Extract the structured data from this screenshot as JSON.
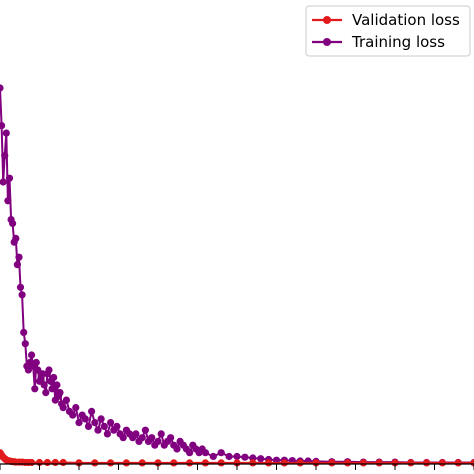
{
  "chart_data": {
    "type": "line",
    "title": "",
    "xlabel": "",
    "ylabel": "",
    "grid": false,
    "legend_position": "top-right",
    "xlim": [
      0,
      300
    ],
    "ylim": [
      0,
      100
    ],
    "series": [
      {
        "name": "Validation loss",
        "color": "#e31a1c",
        "x": [
          0,
          1,
          2,
          3,
          4,
          5,
          6,
          7,
          8,
          9,
          10,
          12,
          14,
          16,
          18,
          20,
          25,
          30,
          35,
          40,
          50,
          60,
          70,
          80,
          90,
          100,
          110,
          120,
          130,
          140,
          150,
          160,
          170,
          180,
          190,
          200,
          210,
          220,
          230,
          240,
          250,
          260,
          270,
          280,
          290,
          300
        ],
        "y": [
          3.0,
          2.4,
          1.8,
          1.4,
          1.1,
          0.9,
          0.8,
          0.7,
          0.6,
          0.6,
          0.5,
          0.5,
          0.5,
          0.4,
          0.4,
          0.4,
          0.4,
          0.4,
          0.4,
          0.4,
          0.3,
          0.3,
          0.3,
          0.3,
          0.3,
          0.3,
          0.3,
          0.3,
          0.3,
          0.3,
          0.3,
          0.3,
          0.3,
          0.3,
          0.3,
          0.3,
          0.3,
          0.3,
          0.3,
          0.3,
          0.3,
          0.3,
          0.3,
          0.3,
          0.3,
          0.3
        ]
      },
      {
        "name": "Training loss",
        "color": "#800080",
        "x": [
          0,
          1,
          2,
          3,
          4,
          5,
          6,
          7,
          8,
          9,
          10,
          11,
          12,
          13,
          14,
          15,
          16,
          17,
          18,
          19,
          20,
          21,
          22,
          23,
          24,
          25,
          26,
          27,
          28,
          29,
          30,
          31,
          32,
          33,
          34,
          35,
          36,
          37,
          38,
          39,
          40,
          42,
          44,
          46,
          48,
          50,
          52,
          54,
          56,
          58,
          60,
          62,
          64,
          66,
          68,
          70,
          72,
          74,
          76,
          78,
          80,
          82,
          84,
          86,
          88,
          90,
          92,
          94,
          96,
          98,
          100,
          102,
          104,
          106,
          108,
          110,
          112,
          114,
          116,
          118,
          120,
          122,
          124,
          126,
          128,
          130,
          135,
          140,
          145,
          150,
          155,
          160,
          165,
          170,
          175,
          180,
          185,
          190,
          195,
          200,
          210,
          220,
          230,
          240,
          250,
          260,
          270,
          280,
          290,
          300
        ],
        "y": [
          100,
          90,
          75,
          82,
          88,
          70,
          76,
          65,
          64,
          59,
          60,
          53,
          55,
          47,
          45,
          35,
          32,
          26,
          25,
          27,
          29,
          26,
          20,
          27,
          25,
          22,
          23,
          24,
          21,
          19,
          24,
          25,
          22,
          20,
          23,
          17,
          21,
          18,
          19,
          16,
          15,
          17,
          14,
          13,
          15,
          11,
          13,
          12,
          10,
          14,
          11,
          9,
          12,
          10,
          8,
          11,
          9,
          10,
          8,
          7,
          9,
          8,
          7,
          8,
          6,
          7,
          9,
          6,
          7,
          5,
          6,
          8,
          5,
          6,
          7,
          5,
          4,
          6,
          5,
          4,
          3,
          5,
          4,
          3,
          4,
          3,
          2,
          3,
          2,
          2,
          1.8,
          1.6,
          1.4,
          1.2,
          1.0,
          1.0,
          0.9,
          0.8,
          0.8,
          0.7,
          0.6,
          0.6,
          0.5,
          0.5,
          0.5,
          0.4,
          0.4,
          0.4,
          0.4,
          0.4
        ]
      }
    ]
  }
}
